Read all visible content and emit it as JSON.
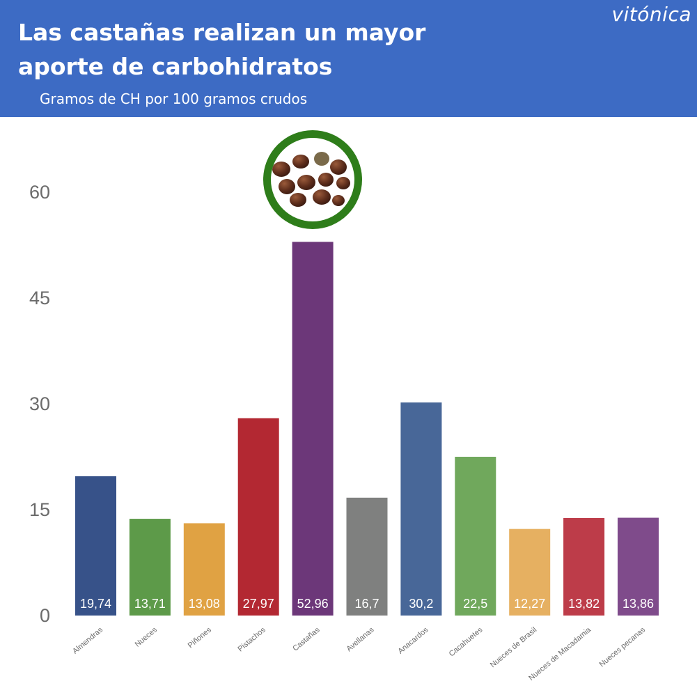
{
  "header": {
    "title": "Las castañas realizan un mayor aporte de carbohidratos",
    "subtitle": "Gramos de CH por 100 gramos crudos",
    "brand": "vitónica"
  },
  "highlight": {
    "category_index": 4,
    "icon": "chestnuts-photo-badge",
    "ring_color": "#2e7d1a"
  },
  "chart_data": {
    "type": "bar",
    "title": "Las castañas realizan un mayor aporte de carbohidratos",
    "subtitle": "Gramos de CH por 100 gramos crudos",
    "xlabel": "",
    "ylabel": "",
    "ylim": [
      0,
      60
    ],
    "yticks": [
      0,
      15,
      30,
      45,
      60
    ],
    "grid": false,
    "legend": "none",
    "categories": [
      "Almendras",
      "Nueces",
      "Piñones",
      "Pistachos",
      "Castañas",
      "Avellanas",
      "Anacardos",
      "Cacahuetes",
      "Nueces de Brasil",
      "Nueces de Macadamia",
      "Nueces pecanas"
    ],
    "values": [
      19.74,
      13.71,
      13.08,
      27.97,
      52.96,
      16.7,
      30.2,
      22.5,
      12.27,
      13.82,
      13.86
    ],
    "value_labels": [
      "19,74",
      "13,71",
      "13,08",
      "27,97",
      "52,96",
      "16,7",
      "30,2",
      "22,5",
      "12,27",
      "13,82",
      "13,86"
    ],
    "colors": [
      "#375289",
      "#5d9a49",
      "#e0a243",
      "#b32832",
      "#6c3779",
      "#7f807f",
      "#486798",
      "#70a85c",
      "#e6b061",
      "#bd3c49",
      "#7f4b8b"
    ]
  }
}
